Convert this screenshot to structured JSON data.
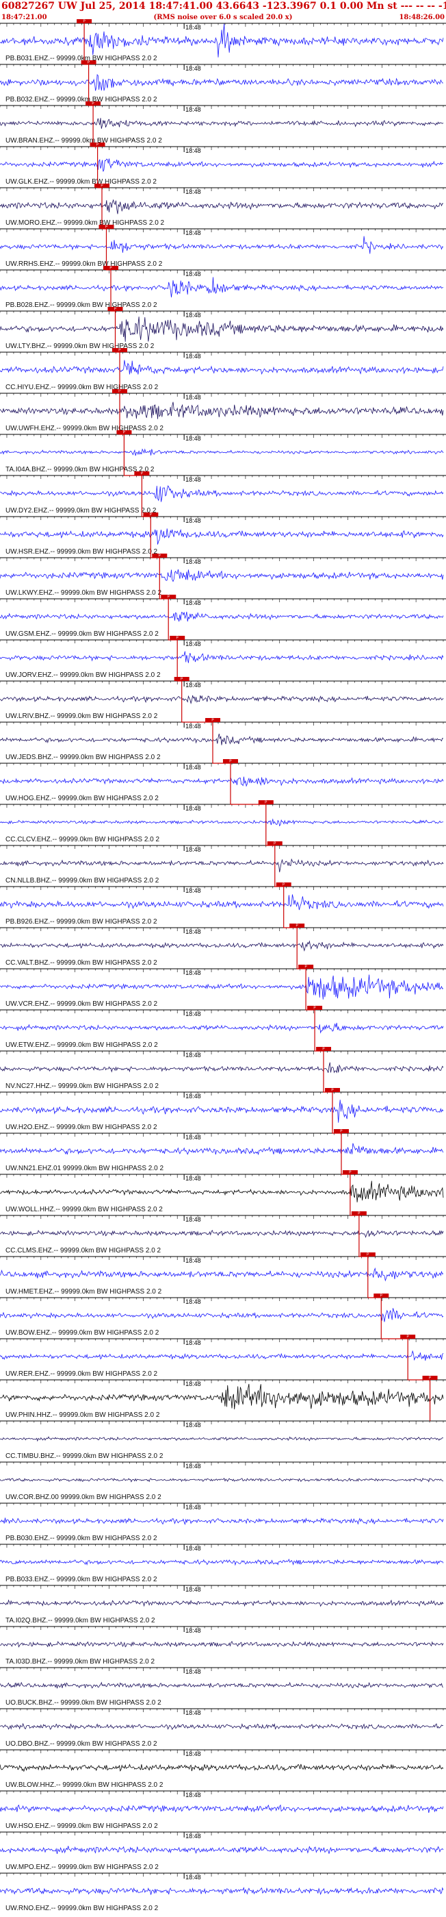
{
  "header": {
    "title": "60827267 UW Jul 25, 2014 18:47:41.00   43.6643 -123.3967  0.1 0.00 Mn st --- --  --  -1",
    "start_time": "18:47:21.00",
    "note": "(RMS noise over 6.0 s scaled 20.0 x)",
    "end_time": "18:48:26.00",
    "minute_label": "18:48"
  },
  "colors": {
    "header_text": "#cc0000",
    "trace_blue": "#1a1aff",
    "trace_dark": "#1a0f5c",
    "trace_black": "#000000",
    "pick_line": "#cc0000",
    "grid": "#000000"
  },
  "chart_data": {
    "type": "seismogram",
    "time_start": "18:47:21.00",
    "time_end": "18:48:26.00",
    "minute_mark": "18:48",
    "pick_label": "P",
    "stations": [
      {
        "label": "PB.B031.EHZ.-- 99999.0km BW  HIGHPASS  2.0  2",
        "color": "blue",
        "pick": 0.19,
        "amp": 5,
        "burst": [
          [
            0.2,
            0.08,
            3
          ],
          [
            0.49,
            0.03,
            6
          ]
        ]
      },
      {
        "label": "PB.B032.EHZ.-- 99999.0km BW  HIGHPASS  2.0  2",
        "color": "blue",
        "pick": 0.2,
        "amp": 4,
        "burst": [
          [
            0.21,
            0.07,
            3
          ]
        ]
      },
      {
        "label": "UW.BRAN.EHZ.-- 99999.0km BW  HIGHPASS  2.0  2",
        "color": "dark",
        "pick": 0.21,
        "amp": 3,
        "burst": [
          [
            0.22,
            0.06,
            3
          ]
        ]
      },
      {
        "label": "UW.GLK.EHZ.-- 99999.0km BW  HIGHPASS  2.0  2",
        "color": "blue",
        "pick": 0.22,
        "amp": 3,
        "burst": [
          [
            0.22,
            0.05,
            4
          ]
        ]
      },
      {
        "label": "UW.MORO.EHZ.-- 99999.0km BW  HIGHPASS  2.0  2",
        "color": "dark",
        "pick": 0.23,
        "amp": 4,
        "burst": [
          [
            0.24,
            0.08,
            2.5
          ]
        ]
      },
      {
        "label": "UW.RRHS.EHZ.-- 99999.0km BW  HIGHPASS  2.0  2",
        "color": "blue",
        "pick": 0.24,
        "amp": 3,
        "burst": [
          [
            0.25,
            0.06,
            3
          ],
          [
            0.82,
            0.02,
            4
          ]
        ]
      },
      {
        "label": "PB.B028.EHZ.-- 99999.0km BW  HIGHPASS  2.0  2",
        "color": "blue",
        "pick": 0.25,
        "amp": 3,
        "burst": [
          [
            0.38,
            0.05,
            6
          ],
          [
            0.47,
            0.04,
            5
          ]
        ]
      },
      {
        "label": "UW.LTY.BHZ.-- 99999.0km BW  HIGHPASS  2.0  2",
        "color": "dark",
        "pick": 0.26,
        "amp": 4,
        "burst": [
          [
            0.27,
            0.25,
            4
          ]
        ]
      },
      {
        "label": "CC.HIYU.EHZ.-- 99999.0km BW  HIGHPASS  2.0  2",
        "color": "blue",
        "pick": 0.27,
        "amp": 4,
        "burst": [
          [
            0.28,
            0.06,
            2.5
          ]
        ]
      },
      {
        "label": "UW.UWFH.EHZ.-- 99999.0km BW  HIGHPASS  2.0  2",
        "color": "dark",
        "pick": 0.27,
        "amp": 4,
        "burst": [
          [
            0.28,
            0.4,
            2
          ]
        ]
      },
      {
        "label": "TA.I04A.BHZ.-- 99999.0km BW  HIGHPASS  2.0  2",
        "color": "blue",
        "pick": 0.28,
        "amp": 2,
        "burst": [
          [
            0.3,
            0.05,
            3
          ]
        ]
      },
      {
        "label": "UW.DY2.EHZ.-- 99999.0km BW  HIGHPASS  2.0  2",
        "color": "blue",
        "pick": 0.32,
        "amp": 3,
        "burst": [
          [
            0.35,
            0.06,
            5
          ]
        ]
      },
      {
        "label": "UW.HSR.EHZ.-- 99999.0km BW  HIGHPASS  2.0  2",
        "color": "blue",
        "pick": 0.34,
        "amp": 4,
        "burst": [
          [
            0.35,
            0.05,
            3
          ]
        ]
      },
      {
        "label": "UW.LKWY.EHZ.-- 99999.0km BW  HIGHPASS  2.0  2",
        "color": "blue",
        "pick": 0.36,
        "amp": 4,
        "burst": [
          [
            0.37,
            0.08,
            2.5
          ]
        ]
      },
      {
        "label": "UW.GSM.EHZ.-- 99999.0km BW  HIGHPASS  2.0  2",
        "color": "blue",
        "pick": 0.38,
        "amp": 3,
        "burst": [
          [
            0.39,
            0.06,
            2.5
          ]
        ]
      },
      {
        "label": "UW.JORV.EHZ.-- 99999.0km BW  HIGHPASS  2.0  2",
        "color": "blue",
        "pick": 0.4,
        "amp": 3,
        "burst": [
          [
            0.41,
            0.06,
            2
          ]
        ]
      },
      {
        "label": "UW.LRIV.BHZ.-- 99999.0km BW  HIGHPASS  2.0  2",
        "color": "dark",
        "pick": 0.41,
        "amp": 3,
        "burst": [
          [
            0.42,
            0.04,
            2.5
          ]
        ]
      },
      {
        "label": "UW.JEDS.BHZ.-- 99999.0km BW  HIGHPASS  2.0  2",
        "color": "dark",
        "pick": 0.48,
        "amp": 3,
        "burst": [
          [
            0.49,
            0.05,
            2
          ]
        ]
      },
      {
        "label": "UW.HOG.EHZ.-- 99999.0km BW  HIGHPASS  2.0  2",
        "color": "blue",
        "pick": 0.52,
        "amp": 3,
        "burst": [
          [
            0.53,
            0.1,
            2.5
          ]
        ]
      },
      {
        "label": "CC.CLCV.EHZ.-- 99999.0km BW  HIGHPASS  2.0  2",
        "color": "blue",
        "pick": 0.6,
        "amp": 2,
        "burst": [
          [
            0.61,
            0.05,
            2
          ]
        ]
      },
      {
        "label": "CN.NLLB.BHZ.-- 99999.0km BW  HIGHPASS  2.0  2",
        "color": "dark",
        "pick": 0.62,
        "amp": 3,
        "burst": [
          [
            0.63,
            0.04,
            3
          ]
        ]
      },
      {
        "label": "PB.B926.EHZ.-- 99999.0km BW  HIGHPASS  2.0  2",
        "color": "blue",
        "pick": 0.64,
        "amp": 4,
        "burst": [
          [
            0.65,
            0.05,
            3
          ]
        ]
      },
      {
        "label": "CC.VALT.BHZ.-- 99999.0km BW  HIGHPASS  2.0  2",
        "color": "dark",
        "pick": 0.67,
        "amp": 3,
        "burst": [
          [
            0.68,
            0.06,
            2
          ]
        ]
      },
      {
        "label": "UW.VCR.EHZ.-- 99999.0km BW  HIGHPASS  2.0  2",
        "color": "blue",
        "pick": 0.69,
        "amp": 3,
        "burst": [
          [
            0.69,
            0.31,
            6
          ]
        ]
      },
      {
        "label": "UW.ETW.EHZ.-- 99999.0km BW  HIGHPASS  2.0  2",
        "color": "blue",
        "pick": 0.71,
        "amp": 3,
        "burst": [
          [
            0.72,
            0.05,
            3
          ]
        ]
      },
      {
        "label": "NV.NC27.HHZ.-- 99999.0km BW  HIGHPASS  2.0  2",
        "color": "dark",
        "pick": 0.73,
        "amp": 3,
        "burst": [
          [
            0.74,
            0.05,
            2
          ]
        ]
      },
      {
        "label": "UW.H2O.EHZ.-- 99999.0km BW  HIGHPASS  2.0  2",
        "color": "blue",
        "pick": 0.75,
        "amp": 4,
        "burst": [
          [
            0.76,
            0.05,
            2.5
          ]
        ]
      },
      {
        "label": "UW.NN21.EHZ.01 99999.0km BW  HIGHPASS  2.0  2",
        "color": "blue",
        "pick": 0.77,
        "amp": 4,
        "burst": [
          [
            0.78,
            0.05,
            3
          ]
        ]
      },
      {
        "label": "UW.WOLL.HHZ.-- 99999.0km BW  HIGHPASS  2.0  2",
        "color": "black",
        "pick": 0.79,
        "amp": 3,
        "burst": [
          [
            0.79,
            0.21,
            4
          ]
        ]
      },
      {
        "label": "CC.CLMS.EHZ.-- 99999.0km BW  HIGHPASS  2.0  2",
        "color": "dark",
        "pick": 0.81,
        "amp": 3,
        "burst": [
          [
            0.82,
            0.04,
            2
          ]
        ]
      },
      {
        "label": "UW.HMET.EHZ.-- 99999.0km BW  HIGHPASS  2.0  2",
        "color": "blue",
        "pick": 0.83,
        "amp": 4,
        "burst": [
          [
            0.84,
            0.06,
            2.5
          ]
        ]
      },
      {
        "label": "UW.BOW.EHZ.-- 99999.0km BW  HIGHPASS  2.0  2",
        "color": "blue",
        "pick": 0.86,
        "amp": 3,
        "burst": [
          [
            0.86,
            0.05,
            4
          ]
        ]
      },
      {
        "label": "UW.RER.EHZ.-- 99999.0km BW  HIGHPASS  2.0  2",
        "color": "blue",
        "pick": 0.92,
        "amp": 3,
        "burst": [
          [
            0.93,
            0.05,
            2
          ]
        ]
      },
      {
        "label": "UW.PHIN.HHZ.-- 99999.0km BW  HIGHPASS  2.0  2",
        "color": "black",
        "pick": 0.97,
        "amp": 4,
        "burst": [
          [
            0.5,
            0.5,
            3.5
          ]
        ]
      },
      {
        "label": "CC.TIMBU.BHZ.-- 99999.0km BW  HIGHPASS  2.0  2",
        "color": "dark",
        "pick": null,
        "amp": 2,
        "burst": []
      },
      {
        "label": "UW.COR.BHZ.00 99999.0km BW  HIGHPASS  2.0  2",
        "color": "dark",
        "pick": null,
        "amp": 2,
        "burst": []
      },
      {
        "label": "PB.B030.EHZ.-- 99999.0km BW  HIGHPASS  2.0  2",
        "color": "blue",
        "pick": null,
        "amp": 3,
        "burst": []
      },
      {
        "label": "PB.B033.EHZ.-- 99999.0km BW  HIGHPASS  2.0  2",
        "color": "blue",
        "pick": null,
        "amp": 3,
        "burst": []
      },
      {
        "label": "TA.I02Q.BHZ.-- 99999.0km BW  HIGHPASS  2.0  2",
        "color": "dark",
        "pick": null,
        "amp": 3,
        "burst": []
      },
      {
        "label": "TA.I03D.BHZ.-- 99999.0km BW  HIGHPASS  2.0  2",
        "color": "dark",
        "pick": null,
        "amp": 3,
        "burst": []
      },
      {
        "label": "UO.BUCK.BHZ.-- 99999.0km BW  HIGHPASS  2.0  2",
        "color": "dark",
        "pick": null,
        "amp": 3,
        "burst": []
      },
      {
        "label": "UO.DBO.BHZ.-- 99999.0km BW  HIGHPASS  2.0  2",
        "color": "dark",
        "pick": null,
        "amp": 3,
        "burst": []
      },
      {
        "label": "UW.BLOW.HHZ.-- 99999.0km BW  HIGHPASS  2.0  2",
        "color": "black",
        "pick": null,
        "amp": 4,
        "burst": []
      },
      {
        "label": "UW.HSO.EHZ.-- 99999.0km BW  HIGHPASS  2.0  2",
        "color": "blue",
        "pick": null,
        "amp": 4,
        "burst": []
      },
      {
        "label": "UW.MPO.EHZ.-- 99999.0km BW  HIGHPASS  2.0  2",
        "color": "blue",
        "pick": null,
        "amp": 4,
        "burst": []
      },
      {
        "label": "UW.RNO.EHZ.-- 99999.0km BW  HIGHPASS  2.0  2",
        "color": "blue",
        "pick": null,
        "amp": 4,
        "burst": []
      }
    ]
  }
}
